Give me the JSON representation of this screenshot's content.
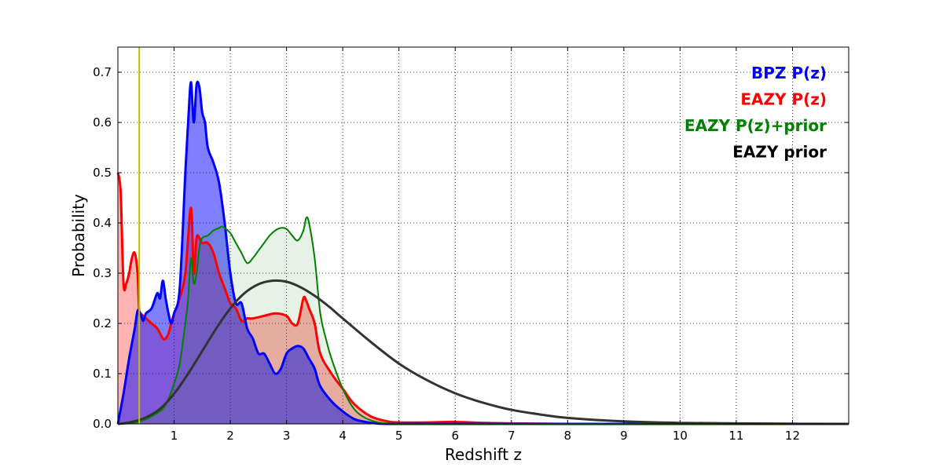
{
  "chart_data": {
    "type": "area",
    "xlabel": "Redshift z",
    "ylabel": "Probability",
    "xlim": [
      0,
      13
    ],
    "ylim": [
      0,
      0.75
    ],
    "xticks": [
      1,
      2,
      3,
      4,
      5,
      6,
      7,
      8,
      9,
      10,
      11,
      12
    ],
    "xtick_labels": [
      "1",
      "2",
      "3",
      "4",
      "5",
      "6",
      "7",
      "8",
      "9",
      "10",
      "11",
      "12"
    ],
    "yticks": [
      0.0,
      0.1,
      0.2,
      0.3,
      0.4,
      0.5,
      0.6,
      0.7
    ],
    "ytick_labels": [
      "0.0",
      "0.1",
      "0.2",
      "0.3",
      "0.4",
      "0.5",
      "0.6",
      "0.7"
    ],
    "grid": true,
    "legend_position": "top-right",
    "marker_line": {
      "x": 0.38,
      "color": "#bfbf00"
    },
    "series": [
      {
        "name": "EAZY P(z)",
        "color": "#ff0000",
        "fill": "#ff0000",
        "fill_opacity": 0.3,
        "line_width": 3,
        "x": [
          0,
          0.05,
          0.1,
          0.15,
          0.2,
          0.25,
          0.3,
          0.35,
          0.38,
          0.4,
          0.45,
          0.5,
          0.6,
          0.7,
          0.8,
          0.85,
          0.9,
          0.95,
          1.0,
          1.1,
          1.2,
          1.3,
          1.35,
          1.4,
          1.45,
          1.5,
          1.6,
          1.7,
          1.8,
          1.9,
          2.0,
          2.1,
          2.2,
          2.3,
          2.4,
          2.6,
          2.8,
          3.0,
          3.1,
          3.2,
          3.3,
          3.35,
          3.4,
          3.5,
          3.6,
          3.8,
          4.0,
          4.2,
          4.5,
          4.8,
          5.0,
          5.5,
          6.0,
          6.5,
          7.0,
          8.0,
          10.0,
          13.0
        ],
        "values": [
          0.5,
          0.46,
          0.28,
          0.28,
          0.3,
          0.33,
          0.34,
          0.3,
          0.22,
          0.22,
          0.215,
          0.21,
          0.2,
          0.19,
          0.17,
          0.17,
          0.18,
          0.2,
          0.22,
          0.25,
          0.3,
          0.43,
          0.3,
          0.37,
          0.37,
          0.36,
          0.36,
          0.34,
          0.3,
          0.27,
          0.24,
          0.23,
          0.205,
          0.21,
          0.21,
          0.215,
          0.22,
          0.215,
          0.2,
          0.2,
          0.25,
          0.245,
          0.23,
          0.2,
          0.14,
          0.1,
          0.07,
          0.04,
          0.015,
          0.005,
          0.003,
          0.003,
          0.004,
          0.002,
          0.001,
          0.0,
          0.0,
          0.0
        ]
      },
      {
        "name": "BPZ P(z)",
        "color": "#0000ff",
        "fill": "#0000ff",
        "fill_opacity": 0.5,
        "line_width": 3,
        "x": [
          0,
          0.1,
          0.2,
          0.3,
          0.35,
          0.4,
          0.45,
          0.5,
          0.6,
          0.7,
          0.75,
          0.8,
          0.85,
          0.9,
          0.95,
          1.0,
          1.1,
          1.2,
          1.25,
          1.3,
          1.35,
          1.4,
          1.45,
          1.5,
          1.55,
          1.6,
          1.7,
          1.8,
          1.9,
          2.0,
          2.1,
          2.2,
          2.3,
          2.4,
          2.5,
          2.6,
          2.7,
          2.8,
          2.9,
          3.0,
          3.1,
          3.2,
          3.3,
          3.4,
          3.5,
          3.6,
          3.8,
          4.0,
          4.2,
          4.4,
          4.6,
          4.8,
          5.0,
          6.0,
          13.0
        ],
        "values": [
          0.0,
          0.06,
          0.13,
          0.19,
          0.225,
          0.22,
          0.205,
          0.22,
          0.23,
          0.26,
          0.25,
          0.285,
          0.25,
          0.22,
          0.2,
          0.22,
          0.27,
          0.5,
          0.6,
          0.68,
          0.6,
          0.675,
          0.67,
          0.62,
          0.6,
          0.55,
          0.52,
          0.48,
          0.4,
          0.3,
          0.24,
          0.24,
          0.19,
          0.17,
          0.14,
          0.14,
          0.12,
          0.1,
          0.11,
          0.14,
          0.15,
          0.155,
          0.15,
          0.13,
          0.11,
          0.075,
          0.045,
          0.025,
          0.01,
          0.004,
          0.001,
          0.0,
          0.0,
          0.0,
          0.0
        ]
      },
      {
        "name": "EAZY P(z)+prior",
        "color": "#008000",
        "fill": "#008000",
        "fill_opacity": 0.1,
        "line_width": 2,
        "x": [
          0,
          0.2,
          0.4,
          0.6,
          0.8,
          0.9,
          1.0,
          1.1,
          1.2,
          1.25,
          1.3,
          1.35,
          1.4,
          1.45,
          1.5,
          1.6,
          1.7,
          1.8,
          1.85,
          1.9,
          2.0,
          2.1,
          2.2,
          2.3,
          2.4,
          2.5,
          2.6,
          2.7,
          2.8,
          2.9,
          3.0,
          3.1,
          3.2,
          3.3,
          3.35,
          3.4,
          3.5,
          3.6,
          3.7,
          3.8,
          4.0,
          4.2,
          4.4,
          4.6,
          4.8,
          5.0,
          6.0,
          13.0
        ],
        "values": [
          0.0,
          0.001,
          0.005,
          0.015,
          0.03,
          0.05,
          0.08,
          0.12,
          0.2,
          0.25,
          0.33,
          0.28,
          0.3,
          0.35,
          0.37,
          0.375,
          0.385,
          0.39,
          0.393,
          0.39,
          0.38,
          0.36,
          0.34,
          0.32,
          0.33,
          0.345,
          0.36,
          0.375,
          0.385,
          0.39,
          0.388,
          0.375,
          0.365,
          0.385,
          0.41,
          0.4,
          0.33,
          0.22,
          0.17,
          0.13,
          0.07,
          0.03,
          0.012,
          0.004,
          0.001,
          0.0,
          0.0,
          0.0
        ]
      },
      {
        "name": "EAZY prior",
        "color": "#333333",
        "fill": null,
        "fill_opacity": 0,
        "line_width": 3,
        "x": [
          0,
          0.25,
          0.5,
          0.75,
          1.0,
          1.25,
          1.5,
          1.75,
          2.0,
          2.25,
          2.5,
          2.75,
          3.0,
          3.25,
          3.5,
          3.75,
          4.0,
          4.5,
          5.0,
          5.5,
          6.0,
          6.5,
          7.0,
          7.5,
          8.0,
          9.0,
          10.0,
          11.0,
          12.0,
          13.0
        ],
        "values": [
          0.0,
          0.004,
          0.013,
          0.03,
          0.06,
          0.1,
          0.145,
          0.19,
          0.23,
          0.26,
          0.278,
          0.285,
          0.283,
          0.272,
          0.255,
          0.234,
          0.21,
          0.163,
          0.12,
          0.087,
          0.061,
          0.042,
          0.028,
          0.019,
          0.012,
          0.005,
          0.002,
          0.001,
          0.0003,
          0.0
        ]
      }
    ]
  },
  "legend": {
    "items": [
      {
        "label": "BPZ P(z)",
        "color": "#0000ff"
      },
      {
        "label": "EAZY P(z)",
        "color": "#ff0000"
      },
      {
        "label": "EAZY P(z)+prior",
        "color": "#008000"
      },
      {
        "label": "EAZY prior",
        "color": "#000000"
      }
    ]
  }
}
